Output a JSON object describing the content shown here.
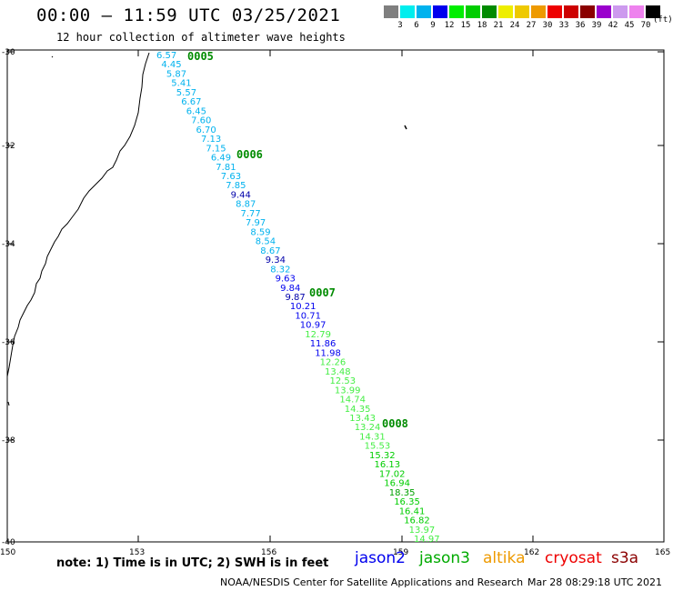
{
  "title": "00:00 – 11:59 UTC 03/25/2021",
  "subtitle": "12 hour collection of altimeter wave heights",
  "color_scale": {
    "labels": [
      "3",
      "6",
      "9",
      "12",
      "15",
      "18",
      "21",
      "24",
      "27",
      "30",
      "33",
      "36",
      "39",
      "42",
      "45",
      "70"
    ],
    "colors": [
      "#7f7f7f",
      "#00eeee",
      "#00b2ee",
      "#0000ee",
      "#00ee00",
      "#00cd00",
      "#008b00",
      "#eeee00",
      "#eec900",
      "#ee9a00",
      "#ee0000",
      "#cd0000",
      "#8b0000",
      "#9a00cd",
      "#cd9aee",
      "#ee82ee",
      "#000000"
    ],
    "unit": "(ft)"
  },
  "lat_ticks": [
    "-30",
    "-32",
    "-34",
    "-36",
    "-38",
    "-40"
  ],
  "lon_ticks": [
    "150",
    "153",
    "156",
    "159",
    "162",
    "165"
  ],
  "passes": [
    {
      "label": "0005",
      "color": "#008b00"
    },
    {
      "label": "0006",
      "color": "#008b00"
    },
    {
      "label": "0007",
      "color": "#008b00"
    },
    {
      "label": "0008",
      "color": "#008b00"
    }
  ],
  "points": [
    {
      "v": "6.57",
      "c": "#00b2ee"
    },
    {
      "v": "4.45",
      "c": "#00b2ee"
    },
    {
      "v": "5.87",
      "c": "#00b2ee"
    },
    {
      "v": "5.41",
      "c": "#00b2ee"
    },
    {
      "v": "5.57",
      "c": "#00b2ee"
    },
    {
      "v": "6.67",
      "c": "#00b2ee"
    },
    {
      "v": "6.45",
      "c": "#00b2ee"
    },
    {
      "v": "7.60",
      "c": "#00b2ee"
    },
    {
      "v": "6.70",
      "c": "#00b2ee"
    },
    {
      "v": "7.13",
      "c": "#00b2ee"
    },
    {
      "v": "7.15",
      "c": "#00b2ee"
    },
    {
      "v": "6.49",
      "c": "#00b2ee"
    },
    {
      "v": "7.81",
      "c": "#00b2ee"
    },
    {
      "v": "7.63",
      "c": "#00b2ee"
    },
    {
      "v": "7.85",
      "c": "#00b2ee"
    },
    {
      "v": "9.44",
      "c": "#0000aa"
    },
    {
      "v": "8.87",
      "c": "#00b2ee"
    },
    {
      "v": "7.77",
      "c": "#00b2ee"
    },
    {
      "v": "7.97",
      "c": "#00b2ee"
    },
    {
      "v": "8.59",
      "c": "#00b2ee"
    },
    {
      "v": "8.54",
      "c": "#00b2ee"
    },
    {
      "v": "8.67",
      "c": "#00b2ee"
    },
    {
      "v": "9.34",
      "c": "#0000aa"
    },
    {
      "v": "8.32",
      "c": "#00b2ee"
    },
    {
      "v": "9.63",
      "c": "#0000ee"
    },
    {
      "v": "9.84",
      "c": "#0000ee"
    },
    {
      "v": "9.87",
      "c": "#0000aa"
    },
    {
      "v": "10.21",
      "c": "#0000ee"
    },
    {
      "v": "10.71",
      "c": "#0000ee"
    },
    {
      "v": "10.97",
      "c": "#0000ee"
    },
    {
      "v": "12.79",
      "c": "#44ee44"
    },
    {
      "v": "11.86",
      "c": "#0000ee"
    },
    {
      "v": "11.98",
      "c": "#0000ee"
    },
    {
      "v": "12.26",
      "c": "#44ee44"
    },
    {
      "v": "13.48",
      "c": "#44ee44"
    },
    {
      "v": "12.53",
      "c": "#44ee44"
    },
    {
      "v": "13.99",
      "c": "#44ee44"
    },
    {
      "v": "14.74",
      "c": "#44ee44"
    },
    {
      "v": "14.35",
      "c": "#44ee44"
    },
    {
      "v": "13.43",
      "c": "#44ee44"
    },
    {
      "v": "13.24",
      "c": "#44ee44"
    },
    {
      "v": "14.31",
      "c": "#44ee44"
    },
    {
      "v": "15.53",
      "c": "#44ee44"
    },
    {
      "v": "15.32",
      "c": "#00cd00"
    },
    {
      "v": "16.13",
      "c": "#00cd00"
    },
    {
      "v": "17.02",
      "c": "#00cd00"
    },
    {
      "v": "16.94",
      "c": "#00cd00"
    },
    {
      "v": "18.35",
      "c": "#00a000"
    },
    {
      "v": "16.35",
      "c": "#00cd00"
    },
    {
      "v": "16.41",
      "c": "#00cd00"
    },
    {
      "v": "16.82",
      "c": "#00cd00"
    },
    {
      "v": "13.97",
      "c": "#44ee44"
    },
    {
      "v": "14.97",
      "c": "#44ee44"
    }
  ],
  "note": "note: 1) Time is in UTC; 2) SWH is in feet",
  "satellites": [
    {
      "name": "jason2",
      "color": "#0000ee"
    },
    {
      "name": "jason3",
      "color": "#00aa00"
    },
    {
      "name": "altika",
      "color": "#ee9a00"
    },
    {
      "name": "cryosat",
      "color": "#ee0000"
    },
    {
      "name": "s3a",
      "color": "#8b0000"
    }
  ],
  "footer": "NOAA/NESDIS Center for Satellite Applications and Research",
  "footer_time": "Mar 28 08:29:18 UTC 2021"
}
